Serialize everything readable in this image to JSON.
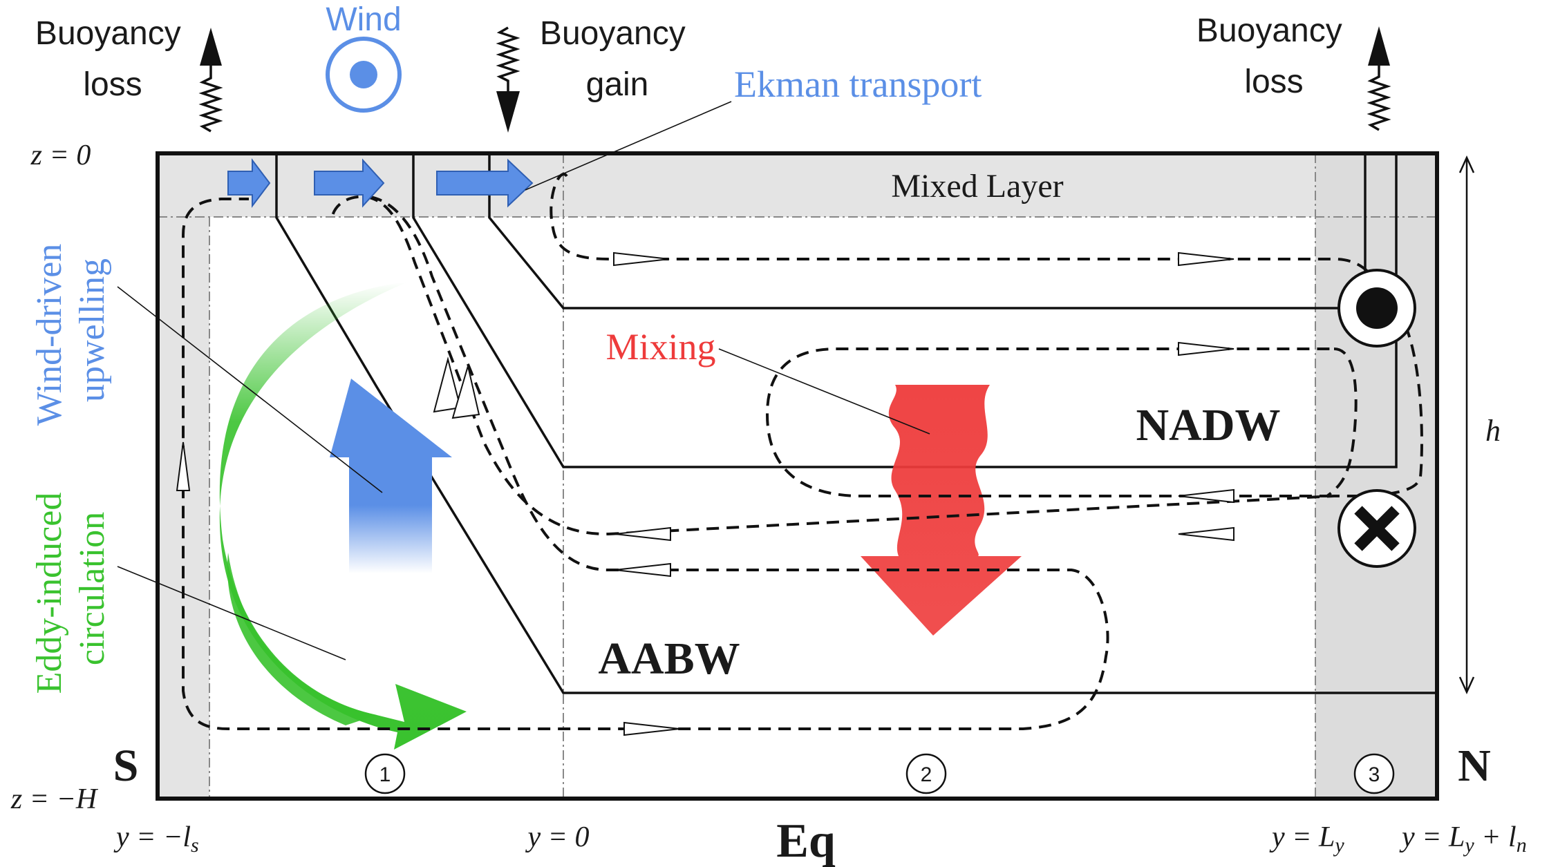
{
  "surface_forcing": {
    "buoyancy_loss_south": [
      "Buoyancy",
      "loss"
    ],
    "wind": "Wind",
    "buoyancy_gain": [
      "Buoyancy",
      "gain"
    ],
    "buoyancy_loss_north": [
      "Buoyancy",
      "loss"
    ]
  },
  "labels": {
    "ekman_transport": "Ekman transport",
    "mixed_layer": "Mixed Layer",
    "wind_driven_upwelling": [
      "Wind-driven",
      "upwelling"
    ],
    "eddy_induced_circulation": [
      "Eddy-induced",
      "circulation"
    ],
    "mixing": "Mixing",
    "nadw": "NADW",
    "aabw": "AABW",
    "south": "S",
    "north": "N",
    "equator": "Eq",
    "depth_h": "h"
  },
  "axes": {
    "z_top": "z = 0",
    "z_bottom": "z = −H",
    "y_south": "y = −l",
    "y_south_sub": "s",
    "y_zero": "y = 0",
    "y_Ly": "y = L",
    "y_Ly_sub": "y",
    "y_north": "y = L",
    "y_north_sub_a": "y",
    "y_north_plus": " + l",
    "y_north_sub_b": "n"
  },
  "regions": [
    "1",
    "2",
    "3"
  ],
  "colors": {
    "wind_blue": "#5b8fe6",
    "eddy_green": "#39c22e",
    "mixing_red": "#ee3b3b",
    "shade_gray": "#e4e4e4"
  }
}
